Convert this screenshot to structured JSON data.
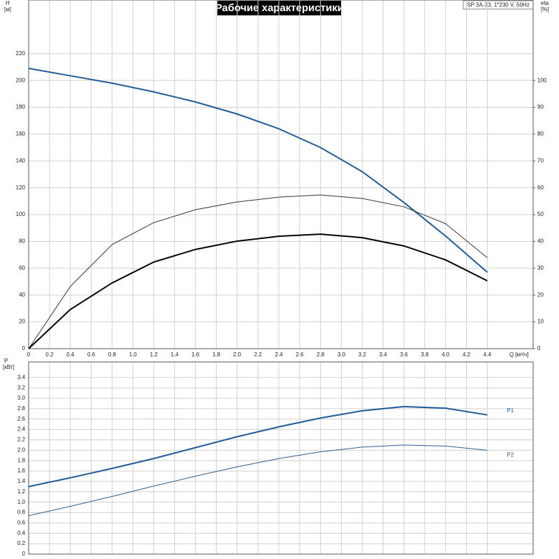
{
  "chart_data": [
    {
      "type": "line",
      "title": "Рабочие характеристики",
      "annotation": "SP 3A-33, 1*230 V, 50Hz",
      "ylabel": "H",
      "yunit": "[м]",
      "y2label": "eta",
      "y2unit": "[%]",
      "xlabel": "Q [м³/ч]",
      "x": [
        0,
        0.4,
        0.8,
        1.2,
        1.6,
        2.0,
        2.4,
        2.8,
        3.2,
        3.6,
        4.0,
        4.4
      ],
      "xlim": [
        0,
        4.84
      ],
      "xticks": [
        0,
        0.2,
        0.4,
        0.6,
        0.8,
        {
          "value": 1.0,
          "label": "1.0"
        },
        1.2,
        1.4,
        1.6,
        1.8,
        {
          "value": 2.0,
          "label": "2.0"
        },
        2.2,
        2.4,
        2.6,
        2.8,
        {
          "value": 3.0,
          "label": "3.0"
        },
        3.2,
        3.4,
        3.6,
        3.8,
        {
          "value": 4.0,
          "label": "4.0"
        },
        4.2,
        4.4
      ],
      "ylim": [
        0,
        260
      ],
      "yticks": [
        0,
        20,
        40,
        60,
        80,
        100,
        120,
        140,
        160,
        180,
        200,
        220
      ],
      "y2lim": [
        0,
        130
      ],
      "y2ticks": [
        0,
        10,
        20,
        30,
        40,
        50,
        60,
        70,
        80,
        90,
        100
      ],
      "grid": true,
      "xtick_labels": true,
      "series": [
        {
          "color": "#1f5b96",
          "width": 2,
          "values": [
            209,
            203.5,
            198,
            191.5,
            184,
            175,
            164,
            150,
            132,
            109,
            84,
            57
          ]
        },
        {
          "color": "#333333",
          "width": 1,
          "axis": "y2",
          "values": [
            0,
            23.2,
            38.8,
            47,
            51.8,
            54.7,
            56.5,
            57.3,
            56,
            52.9,
            46.6,
            33.9
          ]
        },
        {
          "color": "#000000",
          "width": 2,
          "axis": "y2",
          "values": [
            0,
            14.6,
            24.5,
            32.3,
            37,
            40.1,
            41.9,
            42.7,
            41.4,
            38.3,
            33.1,
            25.3
          ]
        }
      ]
    },
    {
      "type": "line",
      "ylabel": "P",
      "yunit": "[кВт]",
      "x": [
        0,
        0.4,
        0.8,
        1.2,
        1.6,
        2.0,
        2.4,
        2.8,
        3.2,
        3.6,
        4.0,
        4.4
      ],
      "xlim": [
        0,
        4.84
      ],
      "xticks": [
        0,
        0.2,
        0.4,
        0.6,
        0.8,
        1,
        1.2,
        1.4,
        1.6,
        1.8,
        2,
        2.2,
        2.4,
        2.6,
        2.8,
        3,
        3.2,
        3.4,
        3.6,
        3.8,
        4,
        4.2,
        4.4
      ],
      "ylim": [
        0,
        3.7
      ],
      "yticks": [
        0,
        0.2,
        0.4,
        0.6,
        0.8,
        {
          "value": 1.0,
          "label": "1.0"
        },
        1.2,
        1.4,
        1.6,
        1.8,
        {
          "value": 2.0,
          "label": "2.0"
        },
        2.2,
        2.4,
        2.6,
        2.8,
        {
          "value": 3.0,
          "label": "3.0"
        },
        3.2,
        3.4
      ],
      "grid": true,
      "xtick_labels": false,
      "series": [
        {
          "name": "P1",
          "color": "#1f5b96",
          "width": 2,
          "values": [
            1.3,
            1.47,
            1.65,
            1.84,
            2.05,
            2.26,
            2.45,
            2.62,
            2.76,
            2.84,
            2.81,
            2.68
          ]
        },
        {
          "name": "P2",
          "color": "#2d5f8f",
          "width": 1,
          "values": [
            0.74,
            0.92,
            1.11,
            1.31,
            1.5,
            1.68,
            1.84,
            1.97,
            2.06,
            2.1,
            2.08,
            2.0
          ]
        }
      ]
    }
  ]
}
